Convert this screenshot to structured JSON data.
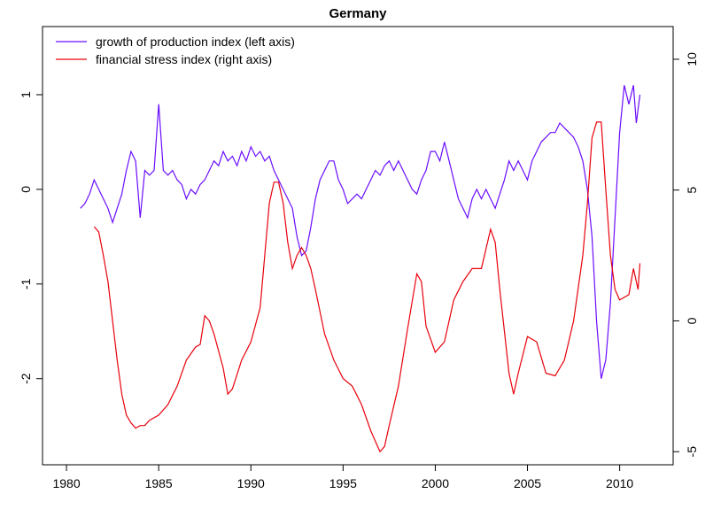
{
  "chart_data": {
    "type": "line",
    "title": "Germany",
    "xlim": [
      1978.7,
      2012.9
    ],
    "xticks": [
      1980,
      1985,
      1990,
      1995,
      2000,
      2005,
      2010
    ],
    "ylim": [
      -2.91,
      1.72
    ],
    "yticks": [
      -2,
      -1,
      0,
      1
    ],
    "y2lim": [
      -5.5,
      11.25
    ],
    "y2ticks": [
      -5,
      0,
      5,
      10
    ],
    "legend": "top-left",
    "series": [
      {
        "name": "growth of production index (left axis)",
        "color": "#6a0dff",
        "axis": "y",
        "x": [
          1980.75,
          1981,
          1981.25,
          1981.5,
          1981.75,
          1982,
          1982.25,
          1982.5,
          1982.75,
          1983,
          1983.25,
          1983.5,
          1983.75,
          1984,
          1984.25,
          1984.5,
          1984.75,
          1985,
          1985.25,
          1985.5,
          1985.75,
          1986,
          1986.25,
          1986.5,
          1986.75,
          1987,
          1987.25,
          1987.5,
          1987.75,
          1988,
          1988.25,
          1988.5,
          1988.75,
          1989,
          1989.25,
          1989.5,
          1989.75,
          1990,
          1990.25,
          1990.5,
          1990.75,
          1991,
          1991.25,
          1991.5,
          1991.75,
          1992,
          1992.25,
          1992.5,
          1992.75,
          1993,
          1993.25,
          1993.5,
          1993.75,
          1994,
          1994.25,
          1994.5,
          1994.75,
          1995,
          1995.25,
          1995.5,
          1995.75,
          1996,
          1996.25,
          1996.5,
          1996.75,
          1997,
          1997.25,
          1997.5,
          1997.75,
          1998,
          1998.25,
          1998.5,
          1998.75,
          1999,
          1999.25,
          1999.5,
          1999.75,
          2000,
          2000.25,
          2000.5,
          2000.75,
          2001,
          2001.25,
          2001.5,
          2001.75,
          2002,
          2002.25,
          2002.5,
          2002.75,
          2003,
          2003.25,
          2003.5,
          2003.75,
          2004,
          2004.25,
          2004.5,
          2004.75,
          2005,
          2005.25,
          2005.5,
          2005.75,
          2006,
          2006.25,
          2006.5,
          2006.75,
          2007,
          2007.25,
          2007.5,
          2007.75,
          2008,
          2008.25,
          2008.5,
          2008.75,
          2009,
          2009.25,
          2009.5,
          2009.75,
          2010,
          2010.25,
          2010.5,
          2010.75,
          2010.9,
          2011.1
        ],
        "values": [
          -0.2,
          -0.15,
          -0.05,
          0.1,
          0.0,
          -0.1,
          -0.2,
          -0.35,
          -0.2,
          -0.05,
          0.2,
          0.4,
          0.3,
          -0.3,
          0.2,
          0.15,
          0.2,
          0.9,
          0.2,
          0.15,
          0.2,
          0.1,
          0.05,
          -0.1,
          0.0,
          -0.05,
          0.05,
          0.1,
          0.2,
          0.3,
          0.25,
          0.4,
          0.3,
          0.35,
          0.25,
          0.4,
          0.3,
          0.45,
          0.35,
          0.4,
          0.3,
          0.35,
          0.2,
          0.1,
          0.0,
          -0.1,
          -0.2,
          -0.5,
          -0.7,
          -0.65,
          -0.4,
          -0.1,
          0.1,
          0.2,
          0.3,
          0.3,
          0.1,
          0.0,
          -0.15,
          -0.1,
          -0.05,
          -0.1,
          0.0,
          0.1,
          0.2,
          0.15,
          0.25,
          0.3,
          0.2,
          0.3,
          0.2,
          0.1,
          0.0,
          -0.05,
          0.1,
          0.2,
          0.4,
          0.4,
          0.3,
          0.5,
          0.3,
          0.1,
          -0.1,
          -0.2,
          -0.3,
          -0.1,
          0.0,
          -0.1,
          0.0,
          -0.1,
          -0.2,
          -0.05,
          0.1,
          0.3,
          0.2,
          0.3,
          0.2,
          0.1,
          0.3,
          0.4,
          0.5,
          0.55,
          0.6,
          0.6,
          0.7,
          0.65,
          0.6,
          0.55,
          0.45,
          0.3,
          0.0,
          -0.5,
          -1.4,
          -2.0,
          -1.8,
          -1.2,
          -0.3,
          0.6,
          1.1,
          0.9,
          1.1,
          0.7,
          1.0
        ]
      },
      {
        "name": "financial stress index (right axis)",
        "color": "#e8000b",
        "axis": "y2",
        "x": [
          1981.5,
          1981.75,
          1982,
          1982.25,
          1982.5,
          1982.75,
          1983,
          1983.25,
          1983.5,
          1983.75,
          1984,
          1984.25,
          1984.5,
          1985,
          1985.5,
          1986,
          1986.5,
          1987,
          1987.25,
          1987.5,
          1987.75,
          1988,
          1988.5,
          1988.75,
          1989,
          1989.5,
          1990,
          1990.5,
          1990.75,
          1991,
          1991.25,
          1991.5,
          1991.75,
          1992,
          1992.25,
          1992.5,
          1992.75,
          1993,
          1993.25,
          1993.5,
          1994,
          1994.5,
          1995,
          1995.5,
          1996,
          1996.5,
          1997,
          1997.25,
          1997.5,
          1998,
          1998.5,
          1999,
          1999.25,
          1999.5,
          2000,
          2000.5,
          2001,
          2001.5,
          2002,
          2002.5,
          2003,
          2003.25,
          2003.5,
          2004,
          2004.25,
          2004.5,
          2005,
          2005.5,
          2006,
          2006.5,
          2007,
          2007.5,
          2008,
          2008.25,
          2008.5,
          2008.75,
          2009,
          2009.25,
          2009.5,
          2009.75,
          2010,
          2010.5,
          2010.75,
          2011,
          2011.1
        ],
        "values": [
          3.6,
          3.4,
          2.5,
          1.5,
          0.0,
          -1.5,
          -2.8,
          -3.6,
          -3.9,
          -4.1,
          -4.0,
          -4.0,
          -3.8,
          -3.6,
          -3.2,
          -2.5,
          -1.5,
          -1.0,
          -0.9,
          0.2,
          0.0,
          -0.5,
          -1.8,
          -2.8,
          -2.6,
          -1.5,
          -0.8,
          0.5,
          2.5,
          4.5,
          5.3,
          5.3,
          4.5,
          3.0,
          2.0,
          2.5,
          2.8,
          2.5,
          2.0,
          1.2,
          -0.5,
          -1.5,
          -2.2,
          -2.5,
          -3.2,
          -4.2,
          -5.0,
          -4.8,
          -4.0,
          -2.5,
          -0.3,
          1.8,
          1.5,
          -0.2,
          -1.2,
          -0.8,
          0.8,
          1.5,
          2.0,
          2.0,
          3.5,
          3.0,
          1.2,
          -2.0,
          -2.8,
          -2.0,
          -0.6,
          -0.8,
          -2.0,
          -2.1,
          -1.5,
          0.0,
          2.5,
          4.5,
          7.0,
          7.6,
          7.6,
          5.0,
          2.5,
          1.2,
          0.8,
          1.0,
          2.0,
          1.2,
          2.2
        ]
      }
    ]
  }
}
